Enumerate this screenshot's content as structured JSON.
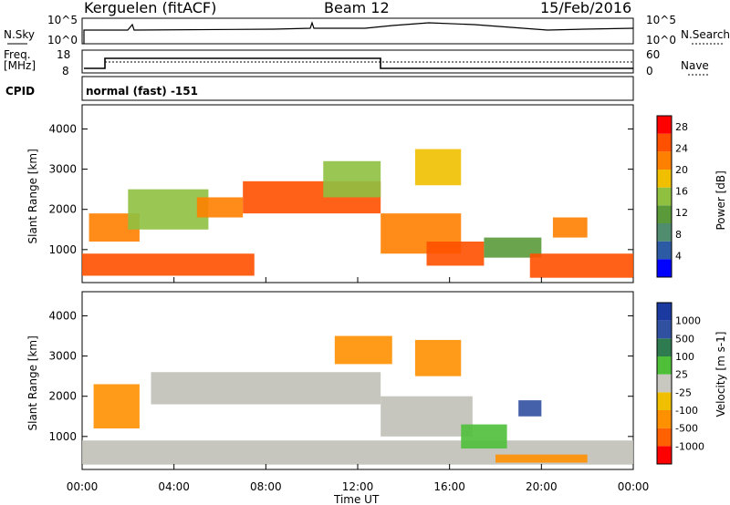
{
  "header": {
    "radar": "Kerguelen (fitACF)",
    "beam": "Beam 12",
    "date": "15/Feb/2016"
  },
  "noise_panel": {
    "left_label": "N.Sky",
    "right_label": "N.Search",
    "left_ticks": [
      "10^5",
      "10^0"
    ],
    "right_ticks": [
      "10^5",
      "10^0"
    ]
  },
  "freq_panel": {
    "left_label_1": "Freq.",
    "left_label_2": "[MHz]",
    "left_ticks": [
      "18",
      "8"
    ],
    "right_label": "Nave",
    "right_ticks": [
      "60",
      "0"
    ],
    "cpid_label": "CPID",
    "cpid_text": "normal (fast) -151"
  },
  "colors": {
    "power_scale": [
      "#0000ff",
      "#2d5aa5",
      "#4f8d6e",
      "#5a9a3a",
      "#8fc040",
      "#f0c000",
      "#ff8000",
      "#ff5000",
      "#ff0000"
    ],
    "velocity_scale": [
      "#1a3aa0",
      "#3050a0",
      "#2e7b50",
      "#4fbf3a",
      "#c8c8c0",
      "#f0c000",
      "#ff9000",
      "#ff6000",
      "#ff0000"
    ],
    "ground_scatter": "#c0c0b8"
  },
  "chart_data": [
    {
      "type": "heatmap",
      "panel": "power",
      "xlabel": "Time UT",
      "ylabel": "Slant Range [km]",
      "x_ticks": [
        "00:00",
        "04:00",
        "08:00",
        "12:00",
        "16:00",
        "20:00",
        "00:00"
      ],
      "xlim_hours": [
        0,
        24
      ],
      "y_ticks": [
        1000,
        2000,
        3000,
        4000
      ],
      "ylim_km": [
        180,
        4600
      ],
      "colorbar": {
        "label": "Power [dB]",
        "ticks": [
          4,
          8,
          12,
          16,
          20,
          24,
          28
        ],
        "range": [
          0,
          30
        ]
      },
      "regions": [
        {
          "hour_start": 0.0,
          "hour_end": 7.5,
          "range_start": 350,
          "range_end": 900,
          "value": 26
        },
        {
          "hour_start": 0.3,
          "hour_end": 2.5,
          "range_start": 1200,
          "range_end": 1900,
          "value": 20
        },
        {
          "hour_start": 2.0,
          "hour_end": 5.5,
          "range_start": 1500,
          "range_end": 2500,
          "value": 14
        },
        {
          "hour_start": 5.0,
          "hour_end": 7.0,
          "range_start": 1800,
          "range_end": 2300,
          "value": 22
        },
        {
          "hour_start": 7.0,
          "hour_end": 13.0,
          "range_start": 1900,
          "range_end": 2700,
          "value": 24
        },
        {
          "hour_start": 10.5,
          "hour_end": 13.0,
          "range_start": 2300,
          "range_end": 3200,
          "value": 16
        },
        {
          "hour_start": 13.0,
          "hour_end": 16.5,
          "range_start": 900,
          "range_end": 1900,
          "value": 22
        },
        {
          "hour_start": 14.5,
          "hour_end": 16.5,
          "range_start": 2600,
          "range_end": 3500,
          "value": 18
        },
        {
          "hour_start": 15.0,
          "hour_end": 17.5,
          "range_start": 600,
          "range_end": 1200,
          "value": 24
        },
        {
          "hour_start": 17.5,
          "hour_end": 20.0,
          "range_start": 800,
          "range_end": 1300,
          "value": 10
        },
        {
          "hour_start": 19.5,
          "hour_end": 24.0,
          "range_start": 300,
          "range_end": 900,
          "value": 26
        },
        {
          "hour_start": 20.5,
          "hour_end": 22.0,
          "range_start": 1300,
          "range_end": 1800,
          "value": 22
        }
      ]
    },
    {
      "type": "heatmap",
      "panel": "velocity",
      "xlabel": "Time UT",
      "ylabel": "Slant Range [km]",
      "x_ticks": [
        "00:00",
        "04:00",
        "08:00",
        "12:00",
        "16:00",
        "20:00",
        "00:00"
      ],
      "xlim_hours": [
        0,
        24
      ],
      "y_ticks": [
        1000,
        2000,
        3000,
        4000
      ],
      "ylim_km": [
        180,
        4600
      ],
      "colorbar": {
        "label": "Velocity [m s-1]",
        "ticks": [
          1000,
          500,
          100,
          25,
          -25,
          -100,
          -500,
          -1000
        ]
      },
      "regions": [
        {
          "hour_start": 0.0,
          "hour_end": 24.0,
          "range_start": 300,
          "range_end": 900,
          "value": 0
        },
        {
          "hour_start": 0.5,
          "hour_end": 2.5,
          "range_start": 1200,
          "range_end": 2300,
          "value": -300
        },
        {
          "hour_start": 3.0,
          "hour_end": 13.0,
          "range_start": 1800,
          "range_end": 2600,
          "value": 0
        },
        {
          "hour_start": 11.0,
          "hour_end": 13.5,
          "range_start": 2800,
          "range_end": 3500,
          "value": -200
        },
        {
          "hour_start": 13.0,
          "hour_end": 17.0,
          "range_start": 1000,
          "range_end": 2000,
          "value": 0
        },
        {
          "hour_start": 14.5,
          "hour_end": 16.5,
          "range_start": 2500,
          "range_end": 3400,
          "value": -300
        },
        {
          "hour_start": 16.5,
          "hour_end": 18.5,
          "range_start": 700,
          "range_end": 1300,
          "value": 150
        },
        {
          "hour_start": 18.0,
          "hour_end": 22.0,
          "range_start": 350,
          "range_end": 550,
          "value": -150
        },
        {
          "hour_start": 19.0,
          "hour_end": 20.0,
          "range_start": 1500,
          "range_end": 1900,
          "value": 700
        }
      ]
    }
  ]
}
